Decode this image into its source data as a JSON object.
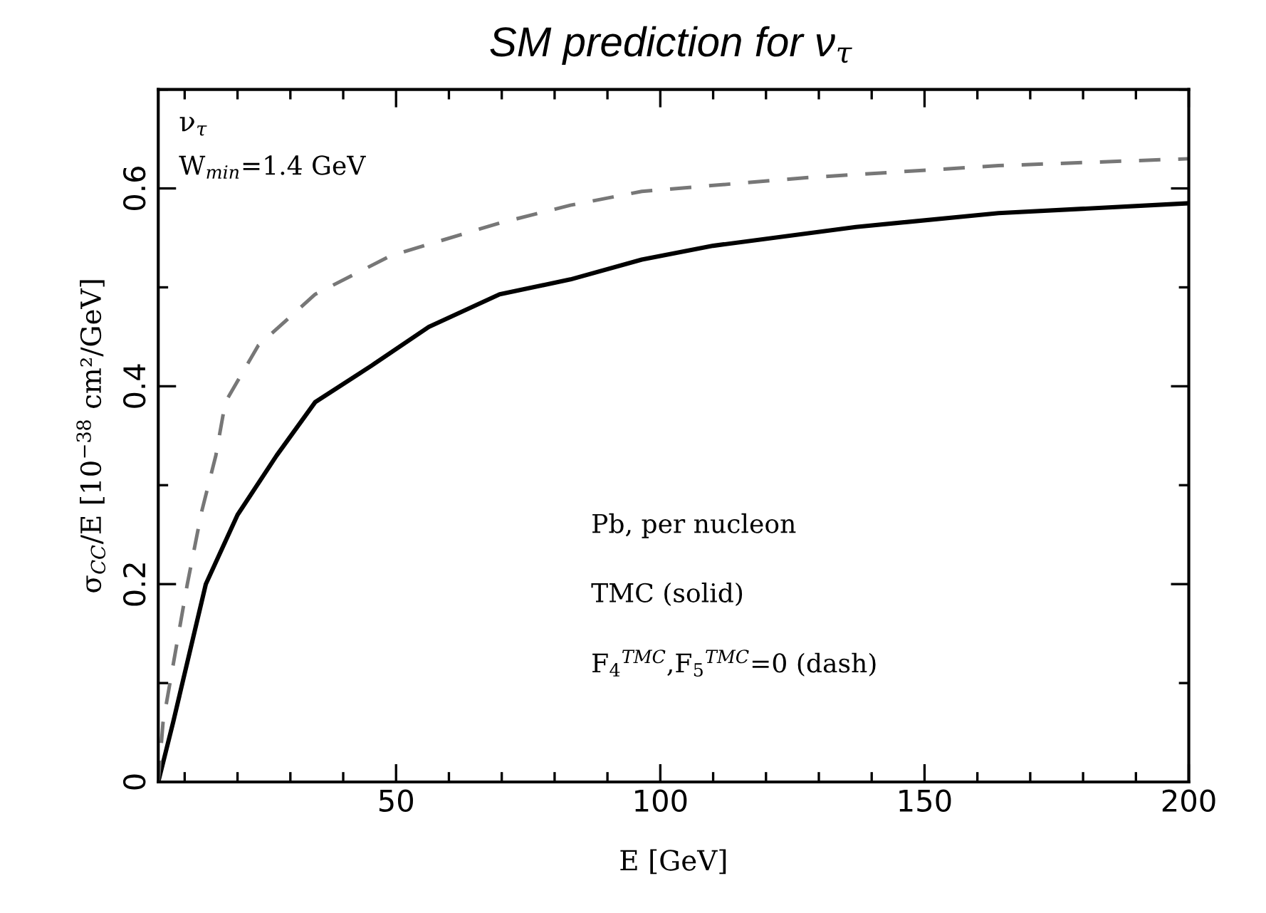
{
  "chart_data": {
    "type": "line",
    "title": "SM prediction for ν$_{τ}$",
    "xlabel": "E [GeV]",
    "ylabel": "σ$_{CC}$/E [10$^{−38}$ cm²/GeV]",
    "xlim": [
      5,
      200
    ],
    "xticks": [
      50,
      100,
      150,
      200
    ],
    "ylim": [
      0,
      0.7
    ],
    "yticks": [
      0,
      0.2,
      0.4,
      0.6
    ],
    "grid": false,
    "legend": false,
    "marker": "none",
    "series": [
      {
        "color": "#000000",
        "line_style": "solid",
        "x": [
          5,
          7.8,
          14,
          20,
          27.4,
          34.7,
          45.4,
          56.2,
          69.6,
          83,
          96.5,
          110,
          137,
          164,
          200
        ],
        "values": [
          0,
          0.06,
          0.2,
          0.27,
          0.33,
          0.384,
          0.421,
          0.46,
          0.493,
          0.508,
          0.528,
          0.542,
          0.561,
          0.575,
          0.585
        ]
      },
      {
        "color": "#777777",
        "line_style": "dashed",
        "x": [
          5,
          5.9,
          10.5,
          13.2,
          15.9,
          17.7,
          23.9,
          34.7,
          49,
          69.6,
          83,
          96.5,
          128,
          164,
          200
        ],
        "values": [
          0,
          0.06,
          0.2,
          0.273,
          0.33,
          0.384,
          0.441,
          0.493,
          0.532,
          0.565,
          0.583,
          0.597,
          0.611,
          0.623,
          0.63
        ]
      }
    ],
    "annotations": [
      "ν$_{τ}$",
      "W$_{min}$=1.4 GeV",
      "Pb, per nucleon",
      "TMC (solid)",
      "F$_{4}$$^{TMC}$,F$_{5}$$^{TMC}$=0 (dash)"
    ]
  }
}
